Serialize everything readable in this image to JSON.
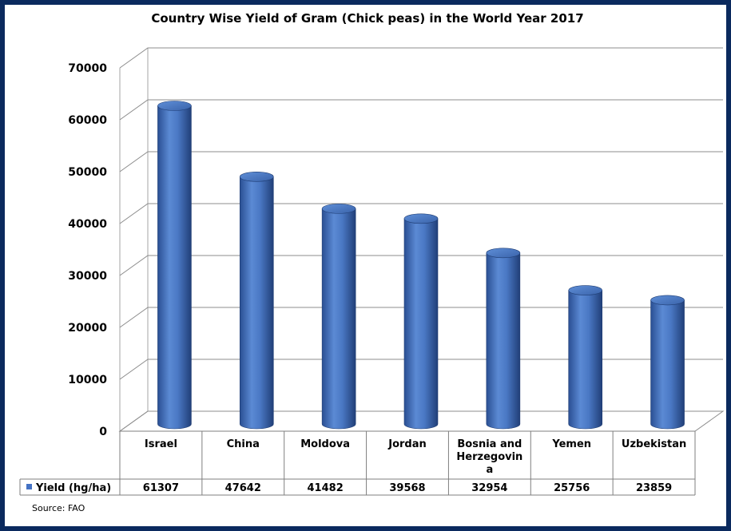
{
  "chart_data": {
    "type": "bar",
    "title": "Country Wise Yield of Gram (Chick peas) in the World Year 2017",
    "categories": [
      "Israel",
      "China",
      "Moldova",
      "Jordan",
      "Bosnia and Herzegovina",
      "Yemen",
      "Uzbekistan"
    ],
    "category_lines": [
      [
        "Israel"
      ],
      [
        "China"
      ],
      [
        "Moldova"
      ],
      [
        "Jordan"
      ],
      [
        "Bosnia and",
        "Herzegovin",
        "a"
      ],
      [
        "Yemen"
      ],
      [
        "Uzbekistan"
      ]
    ],
    "series": [
      {
        "name": "Yield (hg/ha)",
        "values": [
          61307,
          47642,
          41482,
          39568,
          32954,
          25756,
          23859
        ],
        "color": "#4472c4"
      }
    ],
    "value_labels": [
      "61307",
      "47642",
      "41482",
      "39568",
      "32954",
      "25756",
      "23859"
    ],
    "yticks": [
      0,
      10000,
      20000,
      30000,
      40000,
      50000,
      60000,
      70000
    ],
    "ylim": [
      0,
      70000
    ],
    "grid": true,
    "legend": "data-table-left",
    "source": "Source: FAO",
    "frame_color": "#0b2a5e"
  }
}
